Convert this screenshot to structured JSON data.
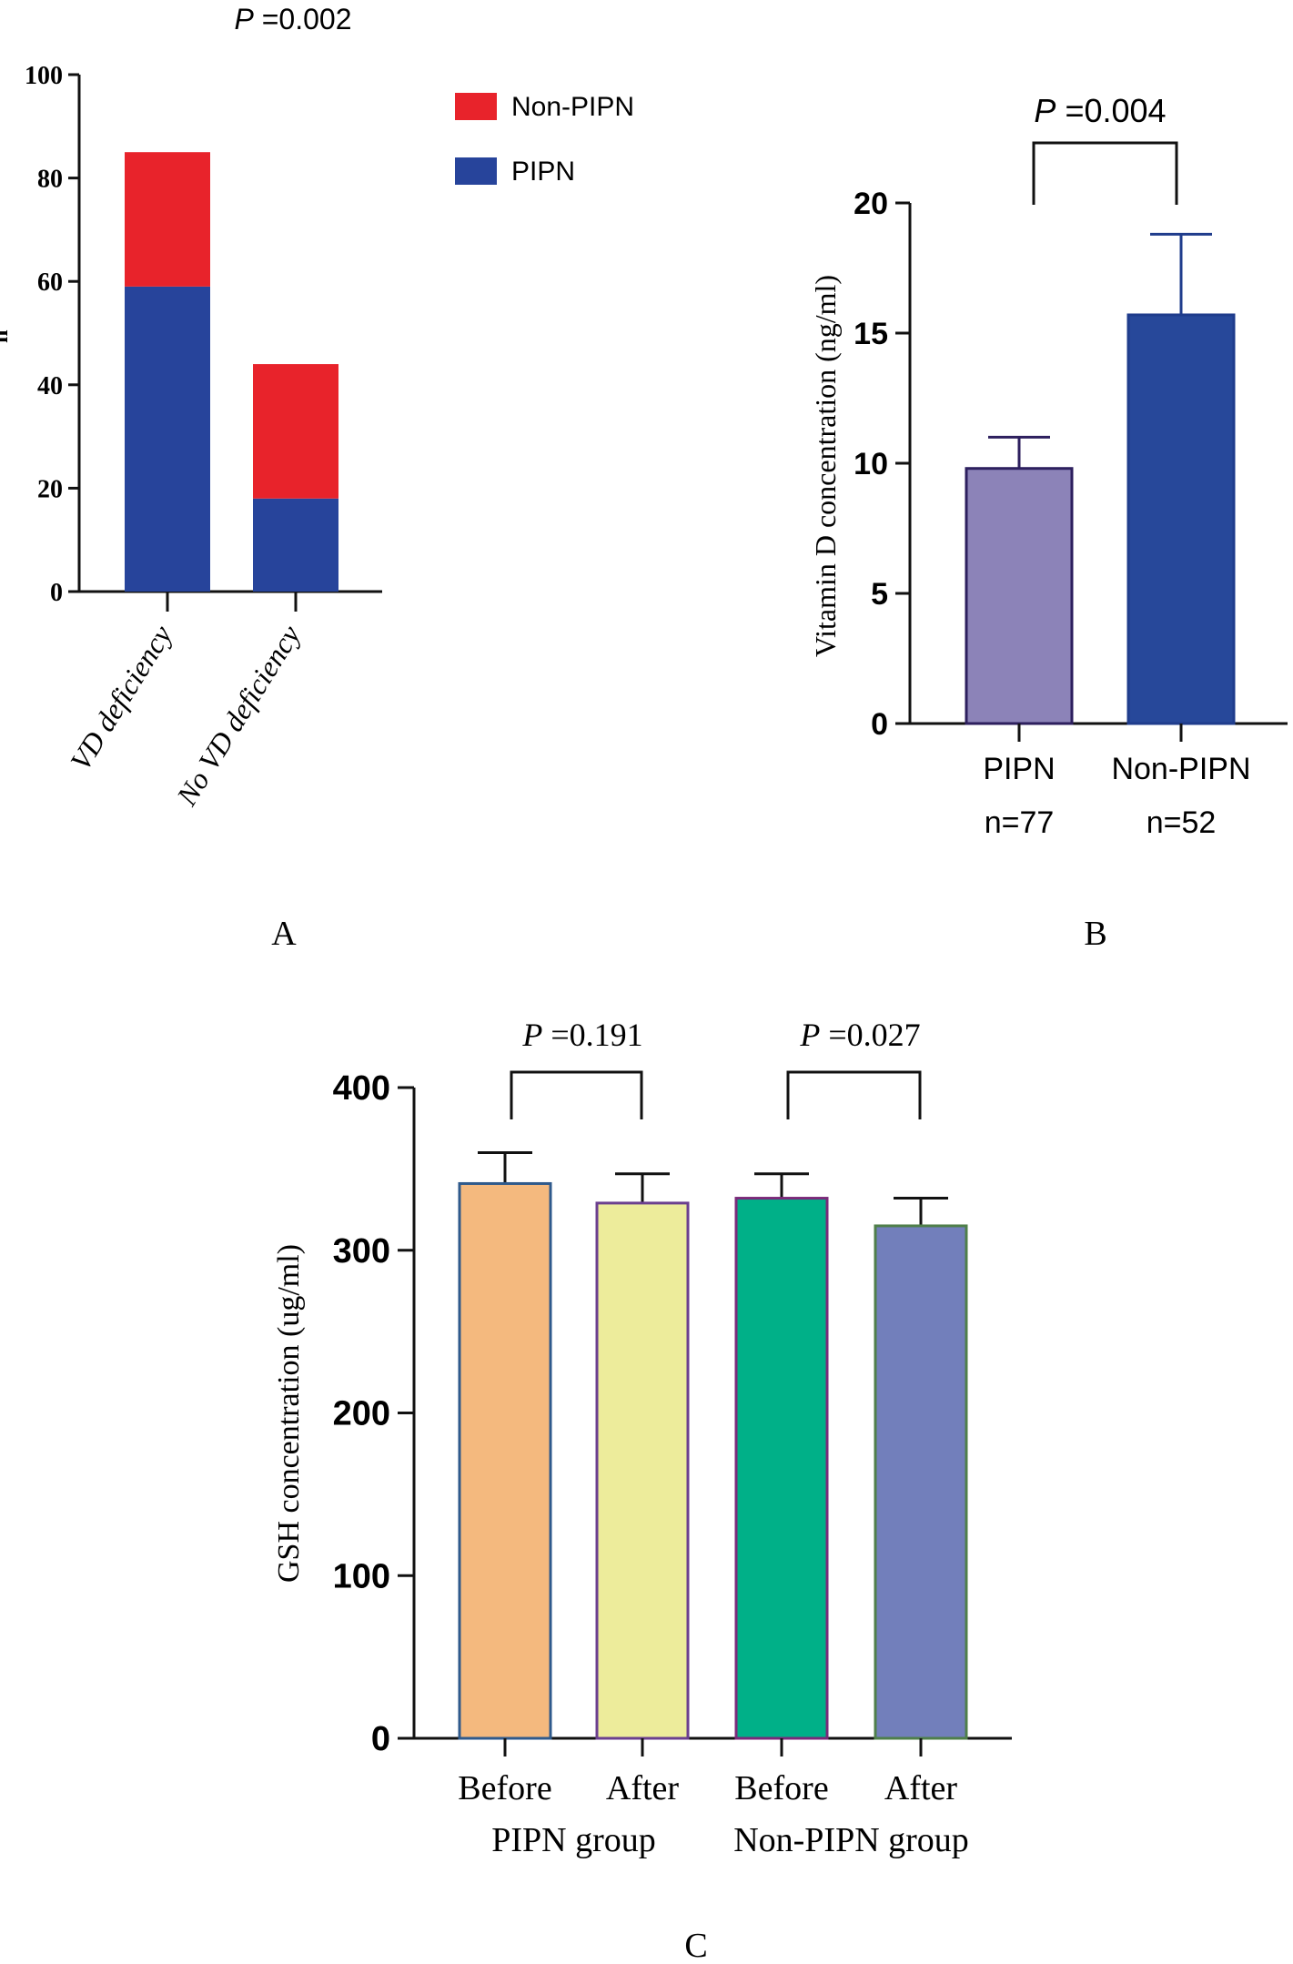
{
  "chart_data": [
    {
      "panel": "A",
      "type": "bar",
      "stacked": true,
      "title": "P =0.002",
      "title_p": "P",
      "title_rest": " =0.002",
      "xlabel": "",
      "ylabel": "n",
      "ylim": [
        0,
        100
      ],
      "yticks": [
        "0",
        "20",
        "40",
        "60",
        "80",
        "100"
      ],
      "categories": [
        "VD deficiency",
        "No VD deficiency"
      ],
      "series": [
        {
          "name": "PIPN",
          "values": [
            59,
            18
          ],
          "color": "#27449B"
        },
        {
          "name": "Non-PIPN",
          "values": [
            26,
            26
          ],
          "color": "#E8232B"
        }
      ],
      "legend": [
        {
          "label": "Non-PIPN",
          "color": "#E8232B"
        },
        {
          "label": "PIPN",
          "color": "#27449B"
        }
      ],
      "legend_position": "top-right"
    },
    {
      "panel": "B",
      "type": "bar",
      "title": "",
      "ylabel": "Vitamin D concentration (ng/ml)",
      "ylim": [
        0,
        20
      ],
      "yticks": [
        "0",
        "5",
        "10",
        "15",
        "20"
      ],
      "categories": [
        "PIPN",
        "Non-PIPN"
      ],
      "sublabels": [
        "n=77",
        "n=52"
      ],
      "values": [
        9.8,
        15.7
      ],
      "errors": [
        1.2,
        3.1
      ],
      "colors": [
        "#8C83B8",
        "#27489A"
      ],
      "comparisons": [
        {
          "between": [
            0,
            1
          ],
          "label_p": "P",
          "label_rest": " =0.004"
        }
      ]
    },
    {
      "panel": "C",
      "type": "bar",
      "title": "",
      "ylabel": "GSH concentration (ug/ml)",
      "ylim": [
        0,
        400
      ],
      "yticks": [
        "0",
        "100",
        "200",
        "300",
        "400"
      ],
      "categories": [
        "Before",
        "After",
        "Before",
        "After"
      ],
      "groups": [
        {
          "label": "PIPN group",
          "members": [
            0,
            1
          ]
        },
        {
          "label": "Non-PIPN group",
          "members": [
            2,
            3
          ]
        }
      ],
      "values": [
        341,
        329,
        332,
        315
      ],
      "errors": [
        19,
        18,
        15,
        17
      ],
      "colors": [
        "#F4B97E",
        "#EDEC9B",
        "#00B088",
        "#727FBB"
      ],
      "edges": [
        "#2F5A8C",
        "#6B3F8F",
        "#7A2A7A",
        "#4F7F4A"
      ],
      "comparisons": [
        {
          "between": [
            0,
            1
          ],
          "label_p": "P",
          "label_rest": " =0.191"
        },
        {
          "between": [
            2,
            3
          ],
          "label_p": "P",
          "label_rest": " =0.027"
        }
      ]
    }
  ],
  "panel_labels": [
    "A",
    "B",
    "C"
  ]
}
